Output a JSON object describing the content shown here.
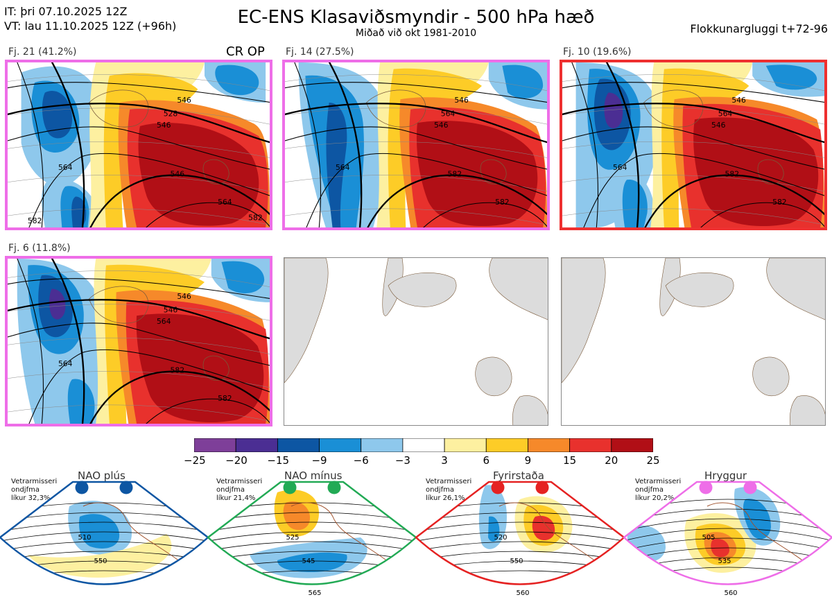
{
  "header": {
    "init_time": "IT: þri 07.10.2025 12Z",
    "valid_time": "VT: lau 11.10.2025 12Z  (+96h)",
    "title": "EC-ENS Klasaviðsmyndir - 500 hPa hæð",
    "subtitle": "Miðað við okt 1981-2010",
    "window": "Flokkunargluggi t+72-96"
  },
  "clusters": [
    {
      "label": "Fj. 21 (41.2%)",
      "border_color": "#ee6ee8",
      "tag": "CR OP",
      "contours": [
        "546",
        "528",
        "546",
        "564",
        "546",
        "564",
        "582",
        "582"
      ]
    },
    {
      "label": "Fj. 14 (27.5%)",
      "border_color": "#ee6ee8",
      "tag": "",
      "contours": [
        "546",
        "564",
        "546",
        "564",
        "582",
        "582"
      ]
    },
    {
      "label": "Fj. 10 (19.6%)",
      "border_color": "#ee3030",
      "tag": "",
      "contours": [
        "546",
        "564",
        "546",
        "564",
        "582",
        "582"
      ]
    },
    {
      "label": "Fj. 6 (11.8%)",
      "border_color": "#ee6ee8",
      "tag": "",
      "contours": [
        "546",
        "546",
        "564",
        "564",
        "582",
        "582"
      ]
    }
  ],
  "colorbar": {
    "ticks": [
      "−25",
      "−20",
      "−15",
      "−9",
      "−6",
      "−3",
      "3",
      "6",
      "9",
      "15",
      "20",
      "25"
    ],
    "colors": [
      "#7e3f99",
      "#4b2e93",
      "#0d56a3",
      "#1a8fd6",
      "#8ec8ec",
      "#ffffff",
      "#fdf0a0",
      "#fdcc27",
      "#f6892a",
      "#e8312d",
      "#b10f16"
    ]
  },
  "regimes": [
    {
      "name": "NAO plús",
      "info": [
        "Vetrarmisseri",
        "ondjfma",
        "líkur 32,3%"
      ],
      "color": "#0d56a3",
      "contours": [
        "510",
        "550"
      ]
    },
    {
      "name": "NAO mínus",
      "info": [
        "Vetrarmisseri",
        "ondjfma",
        "líkur 21,4%"
      ],
      "color": "#22aa55",
      "contours": [
        "525",
        "545",
        "565"
      ]
    },
    {
      "name": "Fyrirstaða",
      "info": [
        "Vetrarmisseri",
        "ondjfma",
        "líkur 26,1%"
      ],
      "color": "#e52222",
      "contours": [
        "520",
        "550",
        "560"
      ]
    },
    {
      "name": "Hryggur",
      "info": [
        "Vetrarmisseri",
        "ondjfma",
        "líkur 20,2%"
      ],
      "color": "#ee6ee8",
      "contours": [
        "505",
        "535",
        "560"
      ]
    }
  ]
}
